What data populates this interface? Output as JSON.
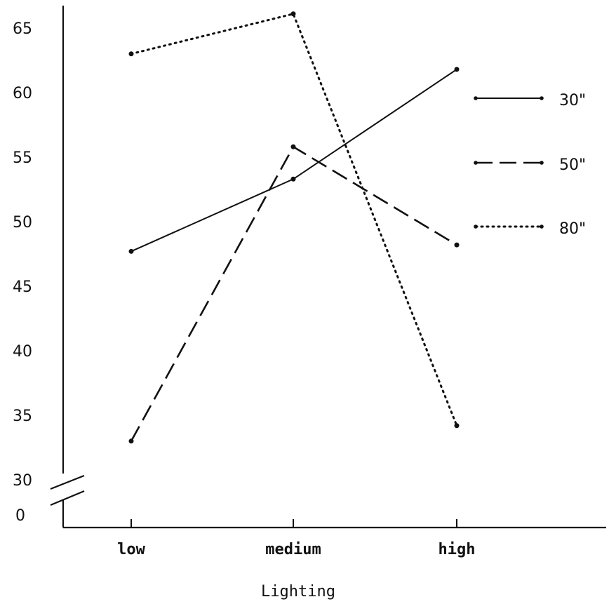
{
  "chart_data": {
    "type": "line",
    "xlabel": "Lighting",
    "ylabel": "",
    "categories": [
      "low",
      "medium",
      "high"
    ],
    "ylim": [
      30,
      67
    ],
    "y_axis_break": true,
    "y_ticks": [
      30,
      35,
      40,
      45,
      50,
      55,
      60,
      65
    ],
    "y_ticks_below_break": [
      0
    ],
    "legend_position": "right",
    "series": [
      {
        "name": "30\"",
        "style": "solid",
        "values": [
          47.7,
          53.3,
          61.8
        ]
      },
      {
        "name": "50\"",
        "style": "dashed",
        "values": [
          33.0,
          55.8,
          48.2
        ]
      },
      {
        "name": "80\"",
        "style": "dotted",
        "values": [
          63.0,
          66.1,
          34.2
        ]
      }
    ]
  }
}
